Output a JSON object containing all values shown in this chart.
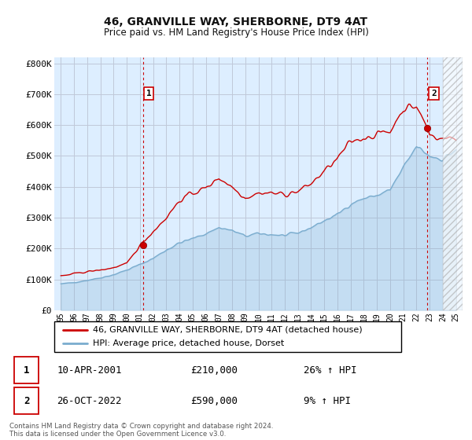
{
  "title": "46, GRANVILLE WAY, SHERBORNE, DT9 4AT",
  "subtitle": "Price paid vs. HM Land Registry's House Price Index (HPI)",
  "legend_line1": "46, GRANVILLE WAY, SHERBORNE, DT9 4AT (detached house)",
  "legend_line2": "HPI: Average price, detached house, Dorset",
  "annotation1_date": "10-APR-2001",
  "annotation1_price": "£210,000",
  "annotation1_hpi": "26% ↑ HPI",
  "annotation2_date": "26-OCT-2022",
  "annotation2_price": "£590,000",
  "annotation2_hpi": "9% ↑ HPI",
  "footer": "Contains HM Land Registry data © Crown copyright and database right 2024.\nThis data is licensed under the Open Government Licence v3.0.",
  "red_color": "#cc0000",
  "blue_color": "#7aacce",
  "chart_bg": "#ddeeff",
  "background_color": "#ffffff",
  "grid_color": "#c0c8d8",
  "ylim": [
    0,
    820000
  ],
  "yticks": [
    0,
    100000,
    200000,
    300000,
    400000,
    500000,
    600000,
    700000,
    800000
  ],
  "ytick_labels": [
    "£0",
    "£100K",
    "£200K",
    "£300K",
    "£400K",
    "£500K",
    "£600K",
    "£700K",
    "£800K"
  ],
  "sale1_x": 2001.27,
  "sale1_y": 210000,
  "sale2_x": 2022.82,
  "sale2_y": 590000,
  "xlim_left": 1994.5,
  "xlim_right": 2025.5,
  "hatch_start": 2024.0
}
